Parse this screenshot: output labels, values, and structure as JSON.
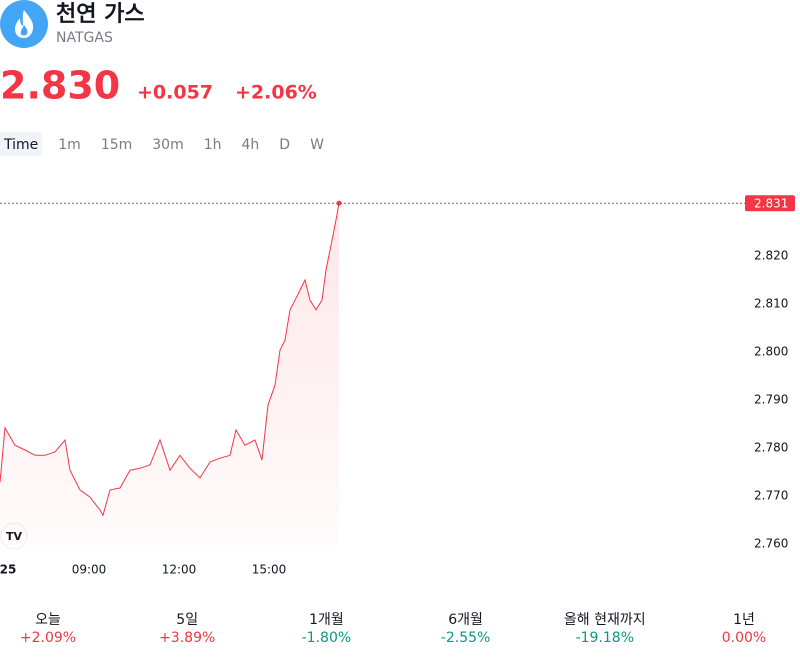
{
  "header": {
    "title": "천연 가스",
    "symbol": "NATGAS",
    "price": "2.830",
    "change": "+0.057",
    "change_percent": "+2.06%",
    "color": "#f23645"
  },
  "timeframes": {
    "items": [
      "Time",
      "1m",
      "15m",
      "30m",
      "1h",
      "4h",
      "D",
      "W"
    ],
    "active": 0
  },
  "chart_data": {
    "type": "line",
    "x": [
      6.033,
      6.2,
      6.533,
      6.867,
      7.2,
      7.533,
      7.867,
      8.2,
      8.367,
      8.7,
      9.033,
      9.367,
      9.467,
      9.7,
      10.033,
      10.367,
      10.7,
      11.033,
      11.367,
      11.7,
      12.033,
      12.367,
      12.7,
      13.033,
      13.367,
      13.7,
      13.9,
      14.2,
      14.533,
      14.767,
      14.967,
      15.2,
      15.367,
      15.533,
      15.7,
      15.867,
      16.2,
      16.367,
      16.567,
      16.767,
      16.9,
      17.1,
      17.233,
      17.333
    ],
    "series": [
      {
        "color": "#f23645",
        "values": [
          2.7729,
          2.7842,
          2.7806,
          2.7796,
          2.7785,
          2.7785,
          2.7792,
          2.7817,
          2.7754,
          2.7713,
          2.7698,
          2.7671,
          2.766,
          2.7713,
          2.7717,
          2.7754,
          2.7758,
          2.7765,
          2.7817,
          2.7754,
          2.7785,
          2.7758,
          2.7738,
          2.7771,
          2.7779,
          2.7785,
          2.7838,
          2.7806,
          2.7817,
          2.7775,
          2.789,
          2.7931,
          2.8004,
          2.8025,
          2.8088,
          2.8108,
          2.815,
          2.8108,
          2.8088,
          2.8108,
          2.8171,
          2.8233,
          2.8275,
          2.831
        ]
      }
    ],
    "xlim": [
      6.033,
      30.7
    ],
    "ylim": [
      2.7567,
      2.84
    ],
    "xticks": [
      {
        "value": 6.3,
        "label": "25"
      },
      {
        "value": 9,
        "label": "09:00"
      },
      {
        "value": 12,
        "label": "12:00"
      },
      {
        "value": 15,
        "label": "15:00"
      }
    ],
    "yticks": [
      {
        "value": 2.76,
        "label": "2.760"
      },
      {
        "value": 2.77,
        "label": "2.770"
      },
      {
        "value": 2.78,
        "label": "2.780"
      },
      {
        "value": 2.79,
        "label": "2.790"
      },
      {
        "value": 2.8,
        "label": "2.800"
      },
      {
        "value": 2.81,
        "label": "2.810"
      },
      {
        "value": 2.82,
        "label": "2.820"
      }
    ],
    "price_line": {
      "value": 2.831,
      "label": "2.831"
    }
  },
  "performance": [
    {
      "label": "오늘",
      "value": "+2.09%",
      "color": "#f23645"
    },
    {
      "label": "5일",
      "value": "+3.89%",
      "color": "#f23645"
    },
    {
      "label": "1개월",
      "value": "-1.80%",
      "color": "#089981"
    },
    {
      "label": "6개월",
      "value": "-2.55%",
      "color": "#089981"
    },
    {
      "label": "올해 현재까지",
      "value": "-19.18%",
      "color": "#089981"
    },
    {
      "label": "1년",
      "value": "0.00%",
      "color": "#f23645"
    }
  ]
}
